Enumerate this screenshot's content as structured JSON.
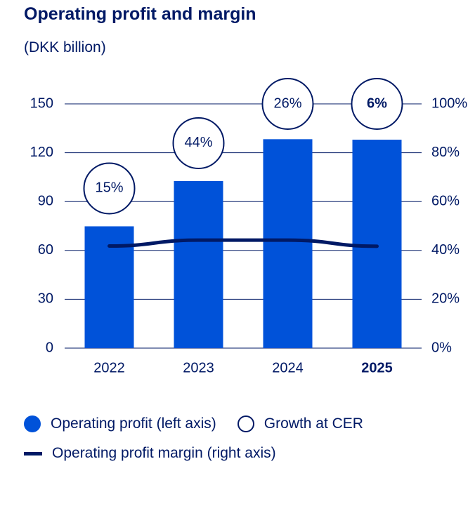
{
  "title": "Operating profit and margin",
  "subtitle": "(DKK billion)",
  "colors": {
    "bar": "#0052D9",
    "navy": "#001965",
    "grid": "#001965"
  },
  "legend": {
    "bar": "Operating profit (left axis)",
    "ring": "Growth at CER",
    "line": "Operating profit margin (right axis)"
  },
  "chart_data": {
    "type": "bar",
    "categories": [
      "2022",
      "2023",
      "2024",
      "2025"
    ],
    "highlight_category": "2025",
    "series": [
      {
        "name": "Operating profit (left axis)",
        "axis": "left",
        "values": [
          74.8,
          102.6,
          128.3,
          128.0
        ]
      },
      {
        "name": "Operating profit margin (right axis)",
        "axis": "right",
        "type": "line",
        "values": [
          41.8,
          44.2,
          44.2,
          41.7
        ]
      }
    ],
    "growth_labels": [
      "15%",
      "44%",
      "26%",
      "6%"
    ],
    "left_axis": {
      "ylim": [
        0,
        150
      ],
      "ticks": [
        "0",
        "30",
        "60",
        "90",
        "120",
        "150"
      ]
    },
    "right_axis": {
      "ylim": [
        0,
        100
      ],
      "ticks": [
        "0%",
        "20%",
        "40%",
        "60%",
        "80%",
        "100%"
      ]
    },
    "xlabel": "",
    "ylabel": ""
  }
}
